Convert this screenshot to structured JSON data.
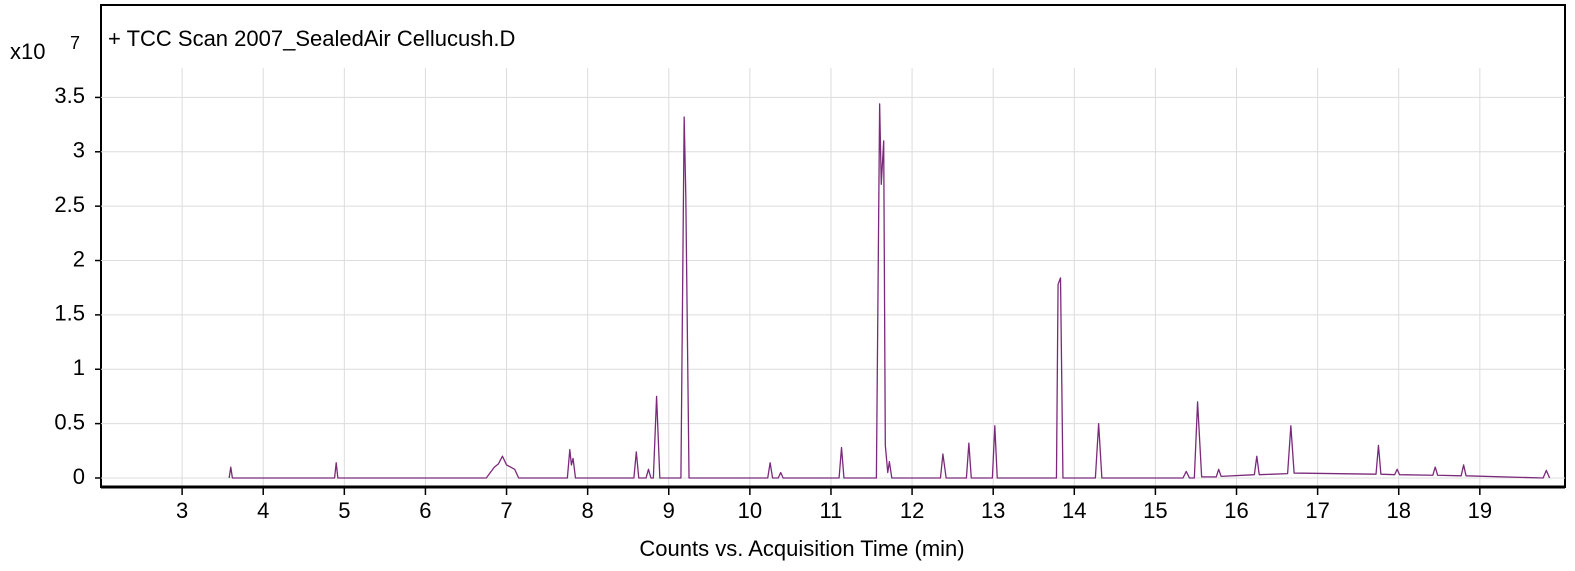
{
  "chart_data": {
    "type": "line",
    "title": "+ TCC Scan 2007_SealedAir Cellucush.D",
    "x_label": "Counts vs. Acquisition Time (min)",
    "y_multiplier": "x10",
    "y_exponent": "7",
    "color": "#7b2a7b",
    "grid": true,
    "xlim": [
      2,
      20.05
    ],
    "xticks": [
      3,
      4,
      5,
      6,
      7,
      8,
      9,
      10,
      11,
      12,
      13,
      14,
      15,
      16,
      17,
      18,
      19
    ],
    "ylim": [
      -0.083,
      4.35
    ],
    "yticks": [
      0,
      0.5,
      1,
      1.5,
      2,
      2.5,
      3,
      3.5
    ],
    "x": [
      3.58,
      3.6,
      3.62,
      4.88,
      4.9,
      4.92,
      6.75,
      6.85,
      6.9,
      6.95,
      7.0,
      7.05,
      7.1,
      7.15,
      7.75,
      7.78,
      7.8,
      7.82,
      7.85,
      8.57,
      8.6,
      8.63,
      8.72,
      8.75,
      8.78,
      8.81,
      8.85,
      8.89,
      9.15,
      9.19,
      9.21,
      9.25,
      10.22,
      10.25,
      10.28,
      10.35,
      10.38,
      10.41,
      11.1,
      11.13,
      11.16,
      11.56,
      11.6,
      11.62,
      11.65,
      11.67,
      11.7,
      11.72,
      11.75,
      12.35,
      12.38,
      12.42,
      12.67,
      12.7,
      12.73,
      12.99,
      13.02,
      13.05,
      13.78,
      13.8,
      13.83,
      13.86,
      14.26,
      14.3,
      14.34,
      15.34,
      15.38,
      15.42,
      15.48,
      15.52,
      15.57,
      15.75,
      15.78,
      15.81,
      16.22,
      16.25,
      16.28,
      16.63,
      16.67,
      16.71,
      17.72,
      17.75,
      17.78,
      17.95,
      17.98,
      18.01,
      18.42,
      18.45,
      18.48,
      18.77,
      18.8,
      18.83,
      19.78,
      19.82,
      19.86
    ],
    "values": [
      0,
      0.1,
      0,
      0,
      0.14,
      0,
      0,
      0.1,
      0.13,
      0.2,
      0.12,
      0.1,
      0.08,
      0,
      0,
      0.26,
      0.12,
      0.18,
      0,
      0,
      0.24,
      0,
      0,
      0.08,
      0,
      0,
      0.75,
      0,
      0,
      3.32,
      2.6,
      0,
      0,
      0.14,
      0,
      0,
      0.05,
      0,
      0,
      0.28,
      0,
      0,
      3.44,
      2.7,
      3.1,
      0.3,
      0.05,
      0.15,
      0,
      0,
      0.22,
      0,
      0,
      0.32,
      0,
      0,
      0.48,
      0,
      0,
      1.78,
      1.84,
      0,
      0,
      0.5,
      0,
      0,
      0.06,
      0,
      0,
      0.7,
      0.01,
      0.01,
      0.08,
      0.015,
      0.03,
      0.2,
      0.03,
      0.04,
      0.48,
      0.045,
      0.035,
      0.3,
      0.035,
      0.03,
      0.08,
      0.03,
      0.025,
      0.1,
      0.025,
      0.02,
      0.12,
      0.02,
      0,
      0.07,
      0
    ]
  }
}
